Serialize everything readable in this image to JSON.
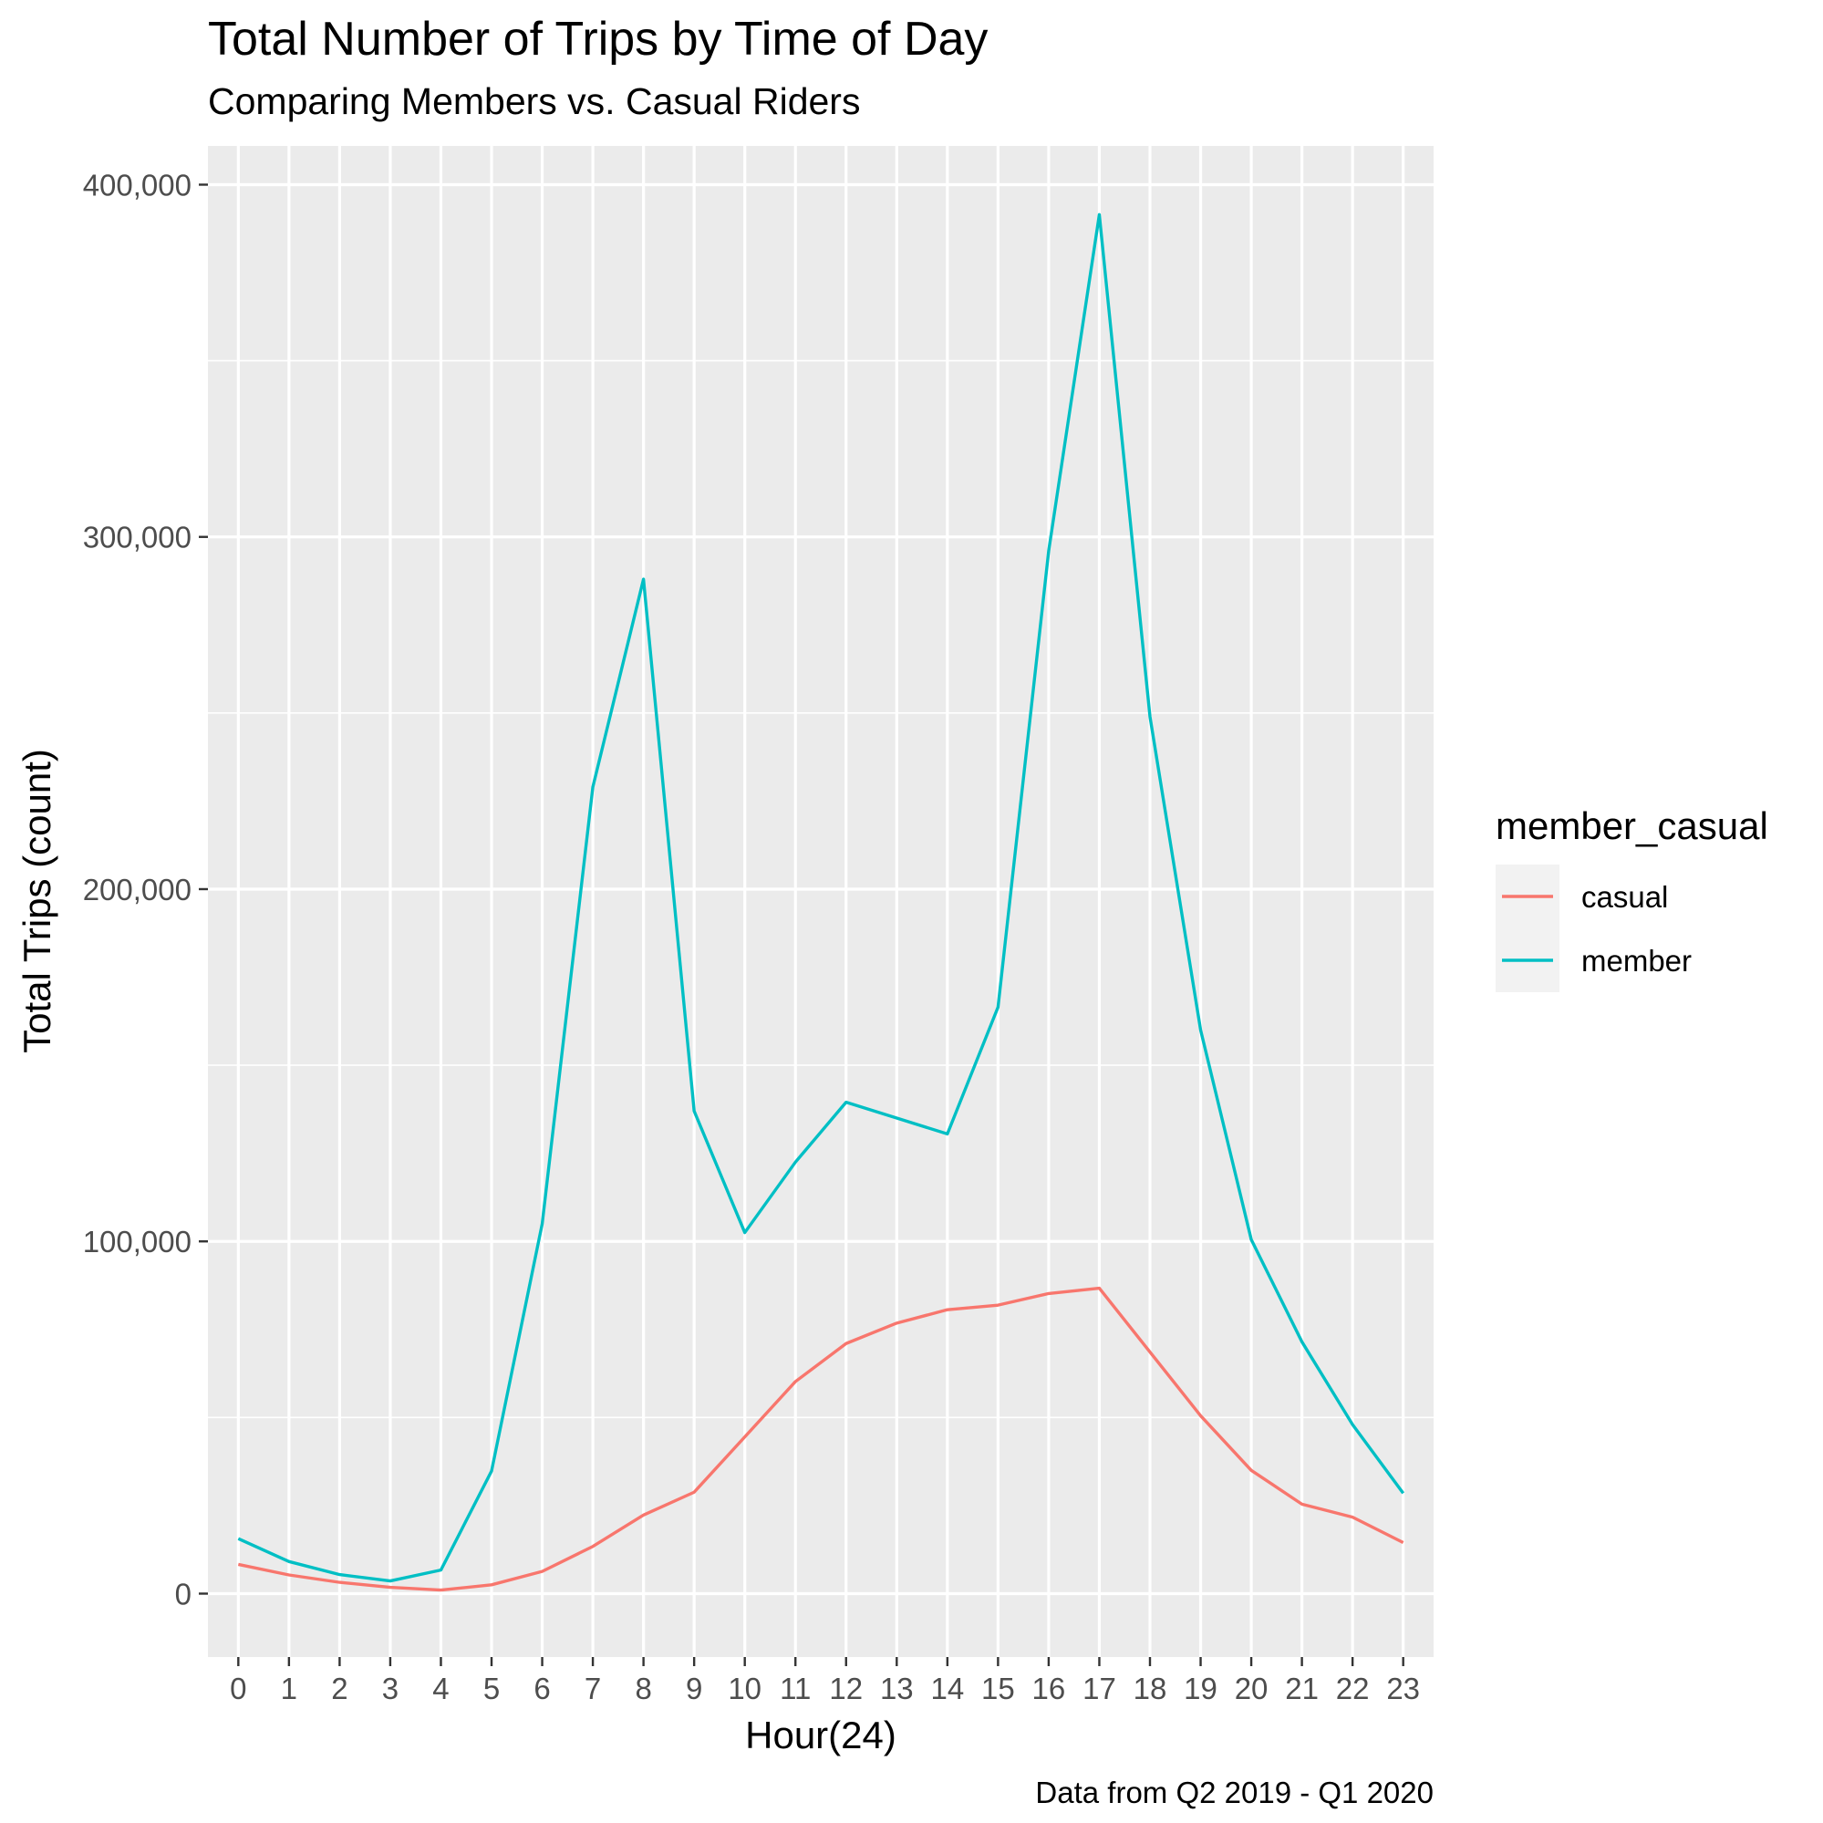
{
  "chart_data": {
    "type": "line",
    "title": "Total Number of Trips by Time of Day",
    "subtitle": "Comparing Members vs. Casual Riders",
    "caption": "Data from Q2 2019 - Q1 2020",
    "xlabel": "Hour(24)",
    "ylabel": "Total Trips (count)",
    "x": [
      0,
      1,
      2,
      3,
      4,
      5,
      6,
      7,
      8,
      9,
      10,
      11,
      12,
      13,
      14,
      15,
      16,
      17,
      18,
      19,
      20,
      21,
      22,
      23
    ],
    "x_tick_labels": [
      "0",
      "1",
      "2",
      "3",
      "4",
      "5",
      "6",
      "7",
      "8",
      "9",
      "10",
      "11",
      "12",
      "13",
      "14",
      "15",
      "16",
      "17",
      "18",
      "19",
      "20",
      "21",
      "22",
      "23"
    ],
    "y_ticks": [
      0,
      100000,
      200000,
      300000,
      400000
    ],
    "y_tick_labels": [
      "0",
      "100,000",
      "200,000",
      "300,000",
      "400,000"
    ],
    "ylim": [
      -18000,
      411000
    ],
    "grid": true,
    "legend": {
      "title": "member_casual",
      "placement": "right"
    },
    "series": [
      {
        "name": "casual",
        "color": "#F8766D",
        "values": [
          8300,
          5300,
          3200,
          1800,
          1000,
          2500,
          6300,
          13400,
          22300,
          28800,
          44500,
          60200,
          71000,
          76800,
          80600,
          81900,
          85200,
          86700,
          68600,
          50500,
          35000,
          25400,
          21700,
          14500
        ]
      },
      {
        "name": "member",
        "color": "#00BFC4",
        "values": [
          15600,
          9100,
          5400,
          3600,
          6700,
          34800,
          105000,
          229000,
          288000,
          137000,
          102500,
          122500,
          139500,
          135000,
          130500,
          166500,
          296000,
          391500,
          249000,
          160000,
          100500,
          71500,
          48000,
          28500
        ]
      }
    ]
  }
}
